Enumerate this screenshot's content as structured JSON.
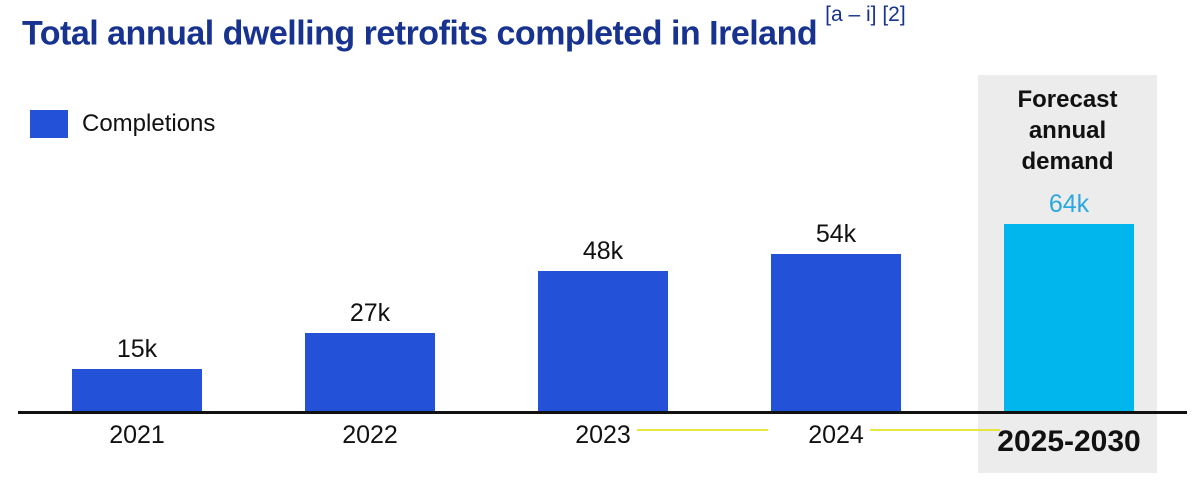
{
  "page": {
    "title": "Total annual dwelling retrofits completed in Ireland",
    "title_superscript": "[a – i] [2]"
  },
  "legend": {
    "label": "Completions",
    "swatch_color": "#2351d8"
  },
  "forecast_panel": {
    "header": "Forecast annual demand",
    "value_label": "64k",
    "period_label": "2025-2030",
    "background_color": "#ececec",
    "value_text_color": "#2aa9e0",
    "bar_color": "#00b6ed"
  },
  "chart_data": {
    "type": "bar",
    "title": "Total annual dwelling retrofits completed in Ireland",
    "title_superscript": "[a – i] [2]",
    "categories": [
      "2021",
      "2022",
      "2023",
      "2024",
      "2025-2030"
    ],
    "series": [
      {
        "name": "Completions",
        "values": [
          15000,
          27000,
          48000,
          54000,
          64000
        ]
      }
    ],
    "value_labels": [
      "15k",
      "27k",
      "48k",
      "54k",
      "64k"
    ],
    "bars": [
      {
        "category": "2021",
        "value_thousands": 15,
        "label": "15k",
        "kind": "actual"
      },
      {
        "category": "2022",
        "value_thousands": 27,
        "label": "27k",
        "kind": "actual"
      },
      {
        "category": "2023",
        "value_thousands": 48,
        "label": "48k",
        "kind": "actual"
      },
      {
        "category": "2024",
        "value_thousands": 54,
        "label": "54k",
        "kind": "actual"
      },
      {
        "category": "2025-2030",
        "value_thousands": 64,
        "label": "64k",
        "kind": "forecast"
      }
    ],
    "legend_entries": [
      "Completions"
    ],
    "legend_position": "top-left",
    "grid": false,
    "y_axis_visible": false,
    "ylim_thousands": [
      0,
      70
    ],
    "annotations": [
      "Forecast annual demand"
    ],
    "colors": {
      "actual": "#2351d8",
      "forecast": "#00b6ed"
    }
  },
  "colors": {
    "title": "#17338f",
    "text": "#111111",
    "axis": "#111111",
    "underline_accent": "#e6e63c"
  }
}
